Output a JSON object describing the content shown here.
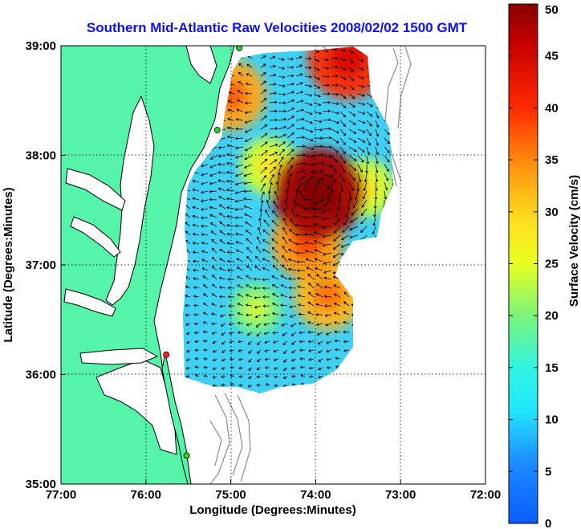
{
  "title": "Southern Mid-Atlantic Raw Velocities 2008/02/02 1500 GMT",
  "colors": {
    "land": "#56f4a8",
    "ocean": "#ffffff",
    "coast": "#000000",
    "bathymetry": "#8c8c8c",
    "arrow": "#000000",
    "station_active": "#2ad12a",
    "station_alert": "#ff2020"
  },
  "chart_data": {
    "type": "heatmap",
    "xlabel": "Longitude (Degrees:Minutes)",
    "ylabel": "Latitude (Degrees:Minutes)",
    "xlim": [
      -77,
      -72
    ],
    "ylim": [
      35,
      39
    ],
    "grid": true,
    "x_ticks": [
      {
        "value": -77,
        "label": "77:00"
      },
      {
        "value": -76,
        "label": "76:00"
      },
      {
        "value": -75,
        "label": "75:00"
      },
      {
        "value": -74,
        "label": "74:00"
      },
      {
        "value": -73,
        "label": "73:00"
      },
      {
        "value": -72,
        "label": "72:00"
      }
    ],
    "y_ticks": [
      {
        "value": 39,
        "label": "39:00"
      },
      {
        "value": 38,
        "label": "38:00"
      },
      {
        "value": 37,
        "label": "37:00"
      },
      {
        "value": 36,
        "label": "36:00"
      },
      {
        "value": 35,
        "label": "35:00"
      }
    ],
    "colorbar": {
      "label": "Surface Velocity (cm/s)",
      "min": 0,
      "max": 50,
      "ticks": [
        {
          "value": 0,
          "label": "0"
        },
        {
          "value": 5,
          "label": "5"
        },
        {
          "value": 10,
          "label": "10"
        },
        {
          "value": 15,
          "label": "15"
        },
        {
          "value": 20,
          "label": "20"
        },
        {
          "value": 25,
          "label": "25"
        },
        {
          "value": 30,
          "label": "30"
        },
        {
          "value": 35,
          "label": "35"
        },
        {
          "value": 40,
          "label": "40"
        },
        {
          "value": 45,
          "label": "45"
        },
        {
          "value": 50,
          "label": "50"
        }
      ]
    },
    "stations": [
      {
        "lon": -74.9,
        "lat": 38.98,
        "status": "active"
      },
      {
        "lon": -75.16,
        "lat": 38.23,
        "status": "active"
      },
      {
        "lon": -75.76,
        "lat": 36.18,
        "status": "alert"
      },
      {
        "lon": -75.52,
        "lat": 35.26,
        "status": "active"
      }
    ],
    "speed_hotspots": [
      {
        "lon": -73.97,
        "lat": 37.65,
        "speed": 48
      },
      {
        "lon": -73.62,
        "lat": 38.88,
        "speed": 40
      },
      {
        "lon": -75.0,
        "lat": 38.55,
        "speed": 33
      },
      {
        "lon": -74.1,
        "lat": 37.2,
        "speed": 34
      },
      {
        "lon": -73.85,
        "lat": 36.72,
        "speed": 32
      },
      {
        "lon": -74.55,
        "lat": 37.9,
        "speed": 24
      },
      {
        "lon": -73.4,
        "lat": 37.7,
        "speed": 24
      },
      {
        "lon": -74.7,
        "lat": 36.6,
        "speed": 20
      }
    ]
  }
}
